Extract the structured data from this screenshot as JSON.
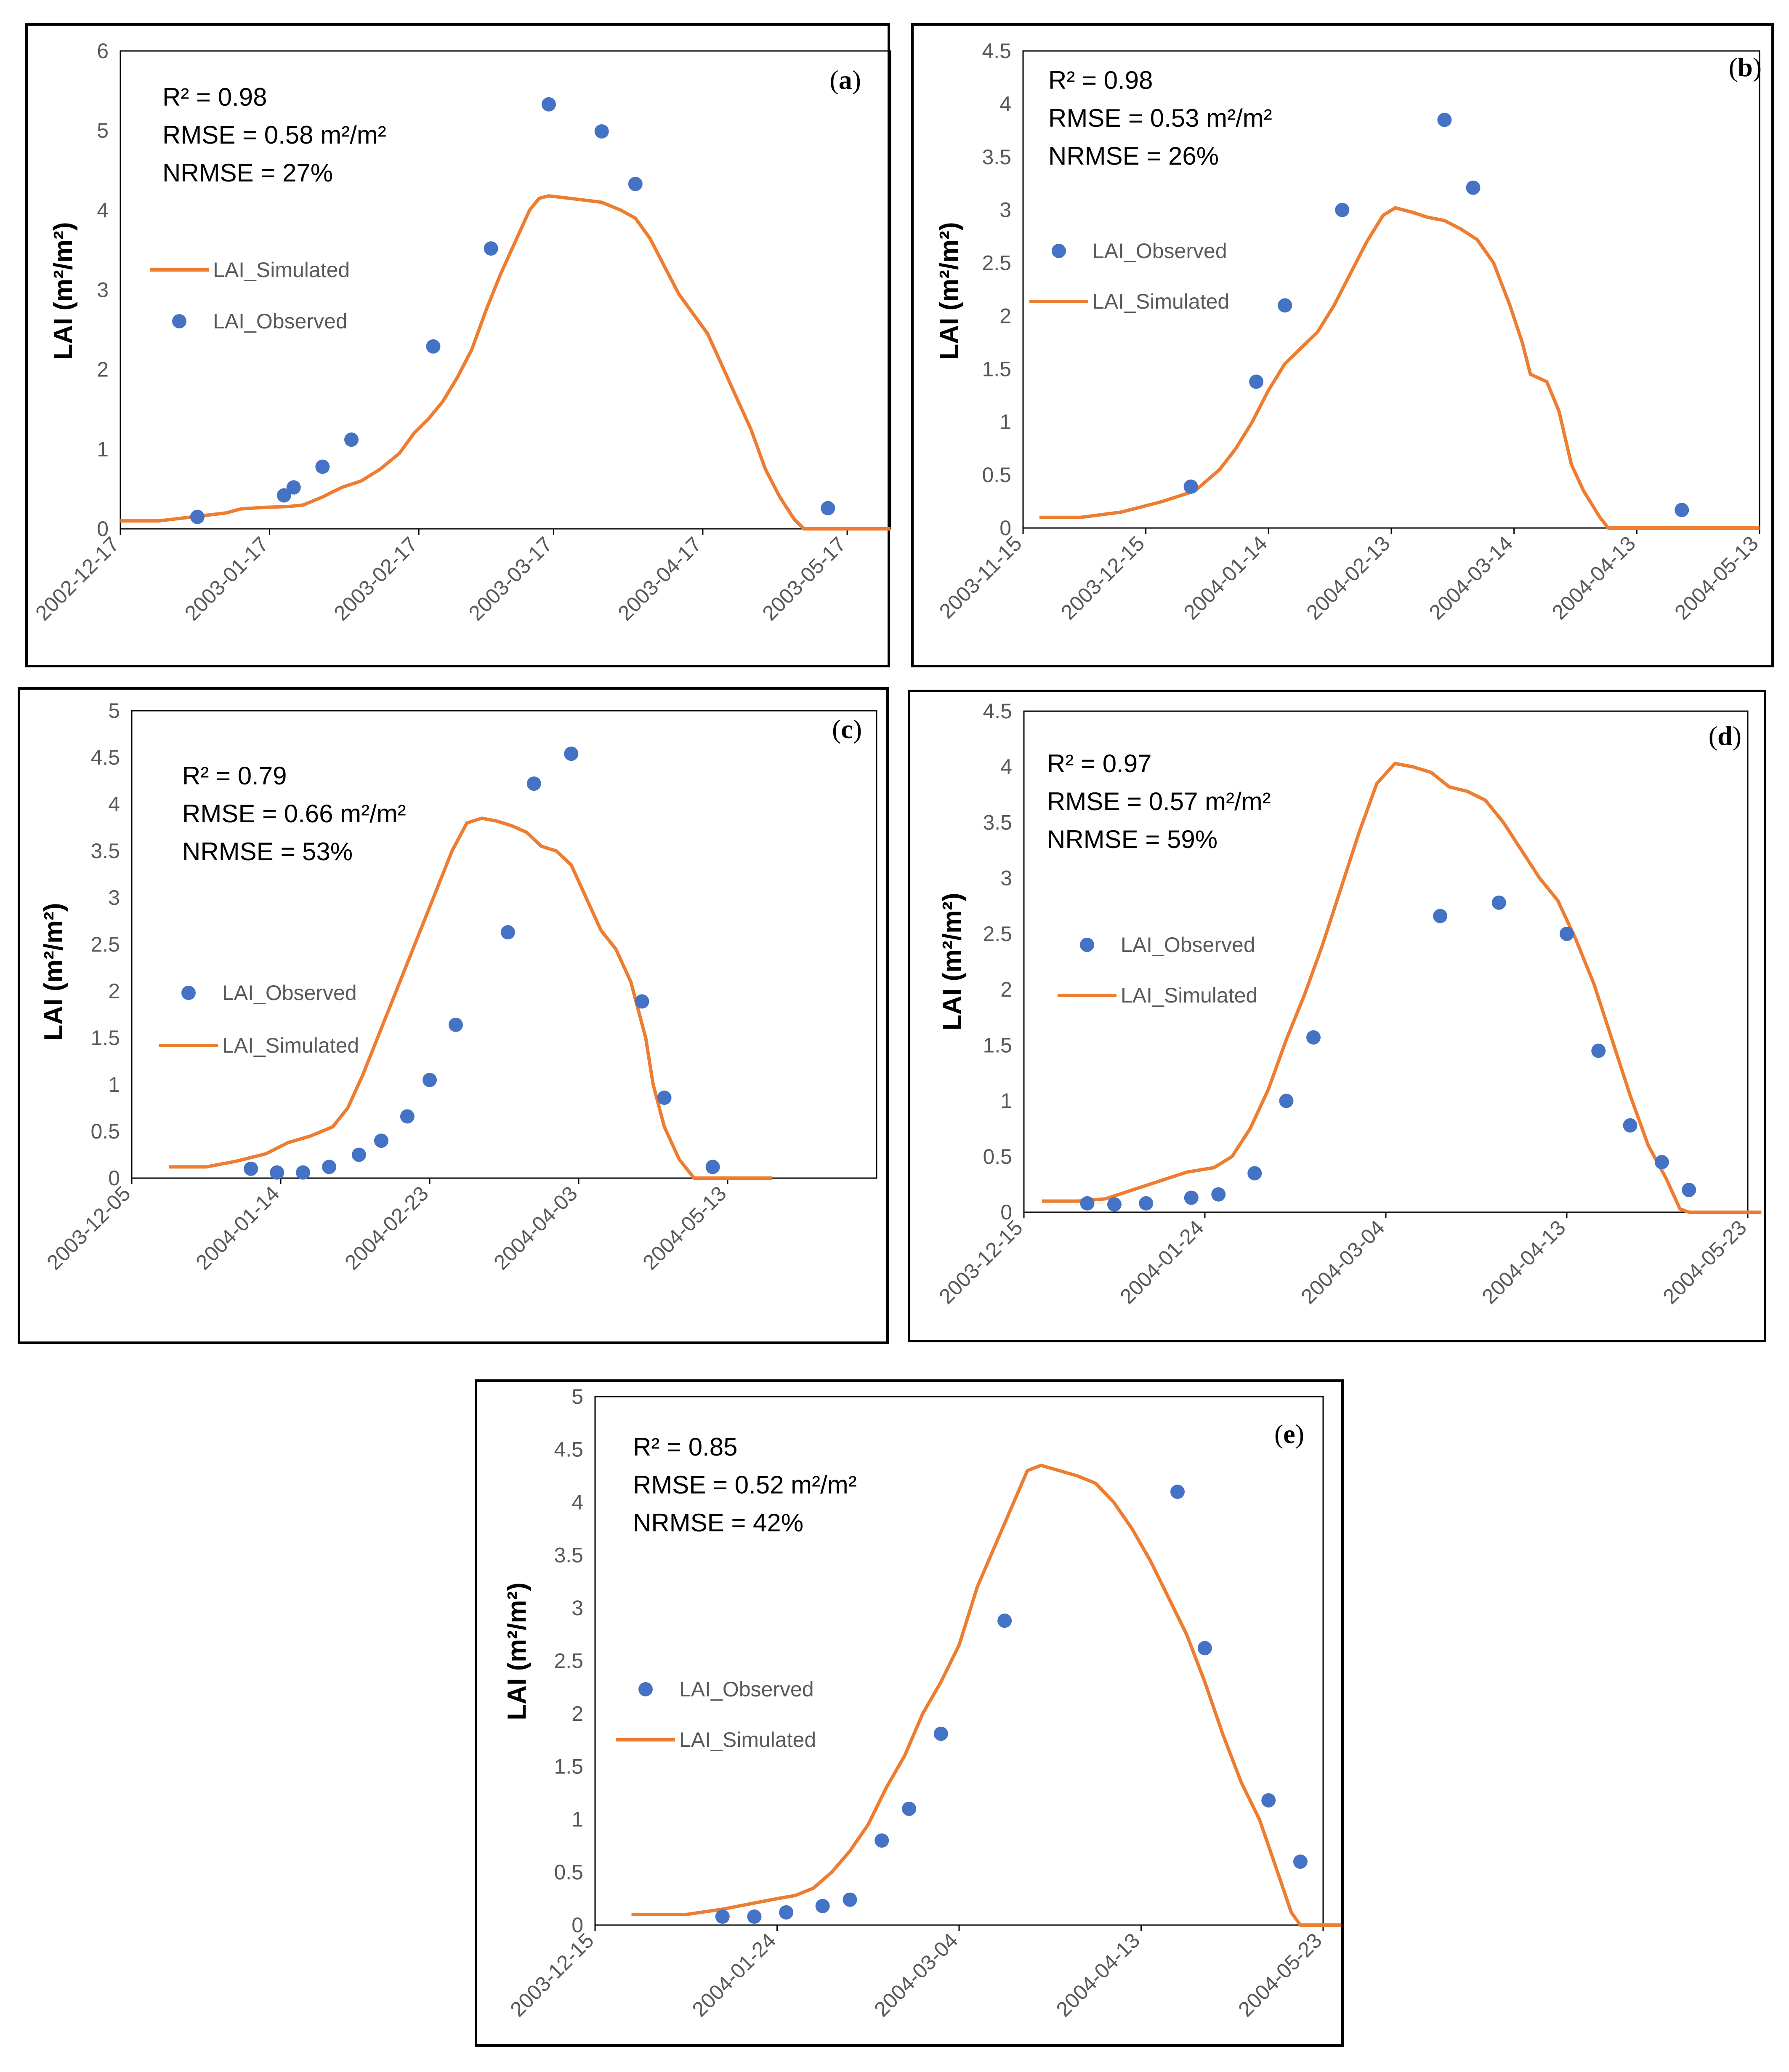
{
  "figure": {
    "y_axis_label": "LAI (m²/m²)",
    "legend_observed": "LAI_Observed",
    "legend_simulated": "LAI_Simulated",
    "colors": {
      "observed": "#4472C4",
      "simulated": "#ED7D31",
      "axis": "#000000",
      "tick": "#595959"
    }
  },
  "chart_data": [
    {
      "id": "a",
      "label": "a",
      "type": "line+scatter",
      "stats": [
        "R² = 0.98",
        "RMSE = 0.58 m²/m²",
        "NRMSE = 27%"
      ],
      "legend_order": [
        "simulated",
        "observed"
      ],
      "xlim": [
        0,
        160
      ],
      "x_ticks": [
        {
          "x": 0,
          "label": "2002-12-17"
        },
        {
          "x": 31,
          "label": "2003-01-17"
        },
        {
          "x": 62,
          "label": "2003-02-17"
        },
        {
          "x": 90,
          "label": "2003-03-17"
        },
        {
          "x": 121,
          "label": "2003-04-17"
        },
        {
          "x": 151,
          "label": "2003-05-17"
        }
      ],
      "ylim": [
        0,
        6
      ],
      "y_ticks": [
        "0",
        "1",
        "2",
        "3",
        "4",
        "5",
        "6"
      ],
      "observed": [
        [
          16,
          0.15
        ],
        [
          34,
          0.42
        ],
        [
          36,
          0.52
        ],
        [
          42,
          0.78
        ],
        [
          48,
          1.12
        ],
        [
          65,
          2.29
        ],
        [
          77,
          3.52
        ],
        [
          89,
          5.33
        ],
        [
          100,
          4.99
        ],
        [
          107,
          4.33
        ],
        [
          147,
          0.26
        ]
      ],
      "simulated": [
        [
          0,
          0.1
        ],
        [
          8,
          0.1
        ],
        [
          15,
          0.15
        ],
        [
          22,
          0.2
        ],
        [
          25,
          0.25
        ],
        [
          30,
          0.27
        ],
        [
          35,
          0.28
        ],
        [
          38,
          0.3
        ],
        [
          42,
          0.4
        ],
        [
          46,
          0.52
        ],
        [
          50,
          0.6
        ],
        [
          54,
          0.75
        ],
        [
          58,
          0.95
        ],
        [
          61,
          1.2
        ],
        [
          64,
          1.38
        ],
        [
          67,
          1.6
        ],
        [
          70,
          1.9
        ],
        [
          73,
          2.25
        ],
        [
          76,
          2.75
        ],
        [
          79,
          3.2
        ],
        [
          82,
          3.6
        ],
        [
          85,
          4.0
        ],
        [
          87,
          4.15
        ],
        [
          89,
          4.18
        ],
        [
          92,
          4.16
        ],
        [
          96,
          4.13
        ],
        [
          100,
          4.1
        ],
        [
          104,
          4.0
        ],
        [
          107,
          3.9
        ],
        [
          110,
          3.65
        ],
        [
          113,
          3.3
        ],
        [
          116,
          2.95
        ],
        [
          119,
          2.7
        ],
        [
          122,
          2.45
        ],
        [
          125,
          2.05
        ],
        [
          128,
          1.65
        ],
        [
          131,
          1.25
        ],
        [
          134,
          0.75
        ],
        [
          137,
          0.4
        ],
        [
          140,
          0.12
        ],
        [
          142,
          0.0
        ],
        [
          160,
          0.0
        ]
      ]
    },
    {
      "id": "b",
      "label": "b",
      "type": "line+scatter",
      "stats": [
        "R² = 0.98",
        "RMSE = 0.53 m²/m²",
        "NRMSE = 26%"
      ],
      "legend_order": [
        "observed",
        "simulated"
      ],
      "xlim": [
        0,
        180
      ],
      "x_ticks": [
        {
          "x": 0,
          "label": "2003-11-15"
        },
        {
          "x": 30,
          "label": "2003-12-15"
        },
        {
          "x": 60,
          "label": "2004-01-14"
        },
        {
          "x": 90,
          "label": "2004-02-13"
        },
        {
          "x": 120,
          "label": "2004-03-14"
        },
        {
          "x": 150,
          "label": "2004-04-13"
        },
        {
          "x": 180,
          "label": "2004-05-13"
        }
      ],
      "ylim": [
        0,
        4.5
      ],
      "y_ticks": [
        "0",
        "0.5",
        "1",
        "1.5",
        "2",
        "2.5",
        "3",
        "3.5",
        "4",
        "4.5"
      ],
      "observed": [
        [
          41,
          0.39
        ],
        [
          57,
          1.38
        ],
        [
          64,
          2.1
        ],
        [
          78,
          3.0
        ],
        [
          103,
          3.85
        ],
        [
          110,
          3.21
        ],
        [
          161,
          0.17
        ]
      ],
      "simulated": [
        [
          4,
          0.1
        ],
        [
          14,
          0.1
        ],
        [
          24,
          0.15
        ],
        [
          34,
          0.25
        ],
        [
          42,
          0.35
        ],
        [
          48,
          0.55
        ],
        [
          52,
          0.75
        ],
        [
          56,
          1.0
        ],
        [
          60,
          1.3
        ],
        [
          64,
          1.55
        ],
        [
          68,
          1.7
        ],
        [
          72,
          1.85
        ],
        [
          76,
          2.1
        ],
        [
          80,
          2.4
        ],
        [
          84,
          2.7
        ],
        [
          88,
          2.95
        ],
        [
          91,
          3.02
        ],
        [
          95,
          2.98
        ],
        [
          99,
          2.93
        ],
        [
          103,
          2.9
        ],
        [
          107,
          2.82
        ],
        [
          111,
          2.72
        ],
        [
          115,
          2.5
        ],
        [
          119,
          2.1
        ],
        [
          122,
          1.75
        ],
        [
          124,
          1.45
        ],
        [
          128,
          1.38
        ],
        [
          131,
          1.1
        ],
        [
          134,
          0.6
        ],
        [
          137,
          0.35
        ],
        [
          141,
          0.1
        ],
        [
          143,
          0.0
        ],
        [
          180,
          0.0
        ]
      ]
    },
    {
      "id": "c",
      "label": "c",
      "type": "line+scatter",
      "stats": [
        "R² = 0.79",
        "RMSE = 0.66 m²/m²",
        "NRMSE = 53%"
      ],
      "legend_order": [
        "observed",
        "simulated"
      ],
      "xlim": [
        0,
        200
      ],
      "x_ticks": [
        {
          "x": 0,
          "label": "2003-12-05"
        },
        {
          "x": 40,
          "label": "2004-01-14"
        },
        {
          "x": 80,
          "label": "2004-02-23"
        },
        {
          "x": 120,
          "label": "2004-04-03"
        },
        {
          "x": 160,
          "label": "2004-05-13"
        }
      ],
      "ylim": [
        0,
        5
      ],
      "y_ticks": [
        "0",
        "0.5",
        "1",
        "1.5",
        "2",
        "2.5",
        "3",
        "3.5",
        "4",
        "4.5",
        "5"
      ],
      "observed": [
        [
          32,
          0.1
        ],
        [
          39,
          0.06
        ],
        [
          46,
          0.06
        ],
        [
          53,
          0.12
        ],
        [
          61,
          0.25
        ],
        [
          67,
          0.4
        ],
        [
          74,
          0.66
        ],
        [
          80,
          1.05
        ],
        [
          87,
          1.64
        ],
        [
          101,
          2.63
        ],
        [
          108,
          4.22
        ],
        [
          118,
          4.54
        ],
        [
          137,
          1.89
        ],
        [
          143,
          0.86
        ],
        [
          156,
          0.12
        ]
      ],
      "simulated": [
        [
          10,
          0.12
        ],
        [
          20,
          0.12
        ],
        [
          28,
          0.18
        ],
        [
          36,
          0.26
        ],
        [
          42,
          0.38
        ],
        [
          48,
          0.45
        ],
        [
          54,
          0.55
        ],
        [
          58,
          0.75
        ],
        [
          62,
          1.1
        ],
        [
          66,
          1.5
        ],
        [
          70,
          1.9
        ],
        [
          74,
          2.3
        ],
        [
          78,
          2.7
        ],
        [
          82,
          3.1
        ],
        [
          86,
          3.5
        ],
        [
          90,
          3.8
        ],
        [
          94,
          3.85
        ],
        [
          98,
          3.82
        ],
        [
          102,
          3.77
        ],
        [
          106,
          3.7
        ],
        [
          110,
          3.55
        ],
        [
          114,
          3.5
        ],
        [
          118,
          3.35
        ],
        [
          122,
          3.0
        ],
        [
          126,
          2.65
        ],
        [
          130,
          2.45
        ],
        [
          134,
          2.1
        ],
        [
          138,
          1.5
        ],
        [
          140,
          1.0
        ],
        [
          143,
          0.55
        ],
        [
          147,
          0.2
        ],
        [
          151,
          0.0
        ],
        [
          172,
          0.0
        ]
      ]
    },
    {
      "id": "d",
      "label": "d",
      "type": "line+scatter",
      "stats": [
        "R² = 0.97",
        "RMSE = 0.57 m²/m²",
        "NRMSE = 59%"
      ],
      "legend_order": [
        "observed",
        "simulated"
      ],
      "xlim": [
        0,
        160
      ],
      "x_ticks": [
        {
          "x": 0,
          "label": "2003-12-15"
        },
        {
          "x": 40,
          "label": "2004-01-24"
        },
        {
          "x": 80,
          "label": "2004-03-04"
        },
        {
          "x": 120,
          "label": "2004-04-13"
        },
        {
          "x": 160,
          "label": "2004-05-23"
        }
      ],
      "ylim": [
        0,
        4.5
      ],
      "y_ticks": [
        "0",
        "0.5",
        "1",
        "1.5",
        "2",
        "2.5",
        "3",
        "3.5",
        "4",
        "4.5"
      ],
      "observed": [
        [
          14,
          0.08
        ],
        [
          20,
          0.07
        ],
        [
          27,
          0.08
        ],
        [
          37,
          0.13
        ],
        [
          43,
          0.16
        ],
        [
          51,
          0.35
        ],
        [
          58,
          1.0
        ],
        [
          64,
          1.57
        ],
        [
          92,
          2.66
        ],
        [
          105,
          2.78
        ],
        [
          120,
          2.5
        ],
        [
          127,
          1.45
        ],
        [
          134,
          0.78
        ],
        [
          141,
          0.45
        ],
        [
          147,
          0.2
        ]
      ],
      "simulated": [
        [
          4,
          0.1
        ],
        [
          12,
          0.1
        ],
        [
          18,
          0.12
        ],
        [
          24,
          0.2
        ],
        [
          30,
          0.28
        ],
        [
          36,
          0.36
        ],
        [
          42,
          0.4
        ],
        [
          46,
          0.5
        ],
        [
          50,
          0.75
        ],
        [
          54,
          1.1
        ],
        [
          58,
          1.55
        ],
        [
          62,
          1.95
        ],
        [
          66,
          2.4
        ],
        [
          70,
          2.9
        ],
        [
          74,
          3.4
        ],
        [
          78,
          3.85
        ],
        [
          82,
          4.03
        ],
        [
          86,
          4.0
        ],
        [
          90,
          3.95
        ],
        [
          94,
          3.82
        ],
        [
          98,
          3.78
        ],
        [
          102,
          3.7
        ],
        [
          106,
          3.5
        ],
        [
          110,
          3.25
        ],
        [
          114,
          3.0
        ],
        [
          118,
          2.8
        ],
        [
          122,
          2.45
        ],
        [
          126,
          2.05
        ],
        [
          130,
          1.55
        ],
        [
          134,
          1.05
        ],
        [
          138,
          0.6
        ],
        [
          142,
          0.3
        ],
        [
          145,
          0.03
        ],
        [
          147,
          0.0
        ],
        [
          163,
          0.0
        ]
      ]
    },
    {
      "id": "e",
      "label": "e",
      "type": "line+scatter",
      "stats": [
        "R² = 0.85",
        "RMSE = 0.52 m²/m²",
        "NRMSE = 42%"
      ],
      "legend_order": [
        "observed",
        "simulated"
      ],
      "xlim": [
        0,
        160
      ],
      "x_ticks": [
        {
          "x": 0,
          "label": "2003-12-15"
        },
        {
          "x": 40,
          "label": "2004-01-24"
        },
        {
          "x": 80,
          "label": "2004-03-04"
        },
        {
          "x": 120,
          "label": "2004-04-13"
        },
        {
          "x": 160,
          "label": "2004-05-23"
        }
      ],
      "ylim": [
        0,
        5
      ],
      "y_ticks": [
        "0",
        "0.5",
        "1",
        "1.5",
        "2",
        "2.5",
        "3",
        "3.5",
        "4",
        "4.5",
        "5"
      ],
      "observed": [
        [
          28,
          0.08
        ],
        [
          35,
          0.08
        ],
        [
          42,
          0.12
        ],
        [
          50,
          0.18
        ],
        [
          56,
          0.24
        ],
        [
          63,
          0.8
        ],
        [
          69,
          1.1
        ],
        [
          76,
          1.81
        ],
        [
          90,
          2.88
        ],
        [
          128,
          4.1
        ],
        [
          134,
          2.62
        ],
        [
          148,
          1.18
        ],
        [
          155,
          0.6
        ]
      ],
      "simulated": [
        [
          8,
          0.1
        ],
        [
          20,
          0.1
        ],
        [
          28,
          0.15
        ],
        [
          34,
          0.2
        ],
        [
          40,
          0.25
        ],
        [
          44,
          0.28
        ],
        [
          48,
          0.35
        ],
        [
          52,
          0.5
        ],
        [
          56,
          0.7
        ],
        [
          60,
          0.95
        ],
        [
          64,
          1.3
        ],
        [
          68,
          1.6
        ],
        [
          72,
          2.0
        ],
        [
          76,
          2.3
        ],
        [
          80,
          2.65
        ],
        [
          84,
          3.2
        ],
        [
          88,
          3.6
        ],
        [
          92,
          4.0
        ],
        [
          95,
          4.3
        ],
        [
          98,
          4.35
        ],
        [
          102,
          4.3
        ],
        [
          106,
          4.25
        ],
        [
          110,
          4.18
        ],
        [
          114,
          4.0
        ],
        [
          118,
          3.75
        ],
        [
          122,
          3.45
        ],
        [
          126,
          3.1
        ],
        [
          130,
          2.75
        ],
        [
          134,
          2.3
        ],
        [
          138,
          1.8
        ],
        [
          142,
          1.35
        ],
        [
          146,
          1.0
        ],
        [
          150,
          0.5
        ],
        [
          153,
          0.12
        ],
        [
          155,
          0.0
        ],
        [
          164,
          0.0
        ]
      ]
    }
  ]
}
